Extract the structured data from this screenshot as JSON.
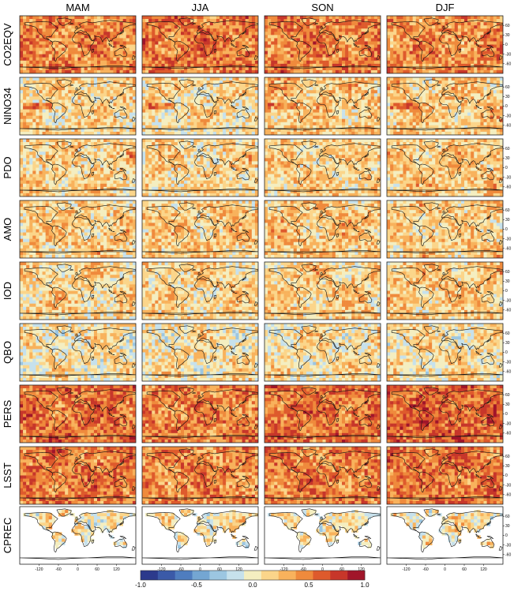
{
  "chart_data": {
    "type": "heatmap",
    "title": "",
    "columns": [
      "MAM",
      "JJA",
      "SON",
      "DJF"
    ],
    "rows": [
      "CO2EQV",
      "NINO34",
      "PDO",
      "AMO",
      "IOD",
      "QBO",
      "PERS",
      "LSST",
      "CPREC"
    ],
    "x_ticks": [
      "-120",
      "-60",
      "0",
      "60",
      "120"
    ],
    "y_ticks": [
      "60",
      "30",
      "0",
      "-30",
      "-60"
    ],
    "x_range": [
      -180,
      180
    ],
    "y_range": [
      -90,
      90
    ],
    "colorbar": {
      "min": -1.0,
      "max": 1.0,
      "tick_labels": [
        "-1.0",
        "-0.5",
        "0.0",
        "0.5",
        "1.0"
      ],
      "colors": [
        "#2c3a8c",
        "#3b5aa8",
        "#4f7dbf",
        "#74a6d2",
        "#9cc6e1",
        "#c6e1ec",
        "#f4eec0",
        "#fbd58a",
        "#f8b25c",
        "#ef8a3c",
        "#de5a2c",
        "#c7362a",
        "#a1152a"
      ]
    },
    "mean_correlation": [
      [
        0.45,
        0.52,
        0.48,
        0.42
      ],
      [
        0.15,
        0.12,
        0.22,
        0.2
      ],
      [
        0.16,
        0.14,
        0.18,
        0.2
      ],
      [
        0.18,
        0.2,
        0.22,
        0.19
      ],
      [
        0.15,
        0.16,
        0.18,
        0.2
      ],
      [
        0.08,
        0.09,
        0.1,
        0.1
      ],
      [
        0.55,
        0.48,
        0.55,
        0.58
      ],
      [
        0.5,
        0.45,
        0.48,
        0.52
      ],
      [
        0.08,
        0.06,
        0.07,
        0.07
      ]
    ],
    "ocean_masked_rows": [
      "CPREC"
    ],
    "grid": false
  }
}
